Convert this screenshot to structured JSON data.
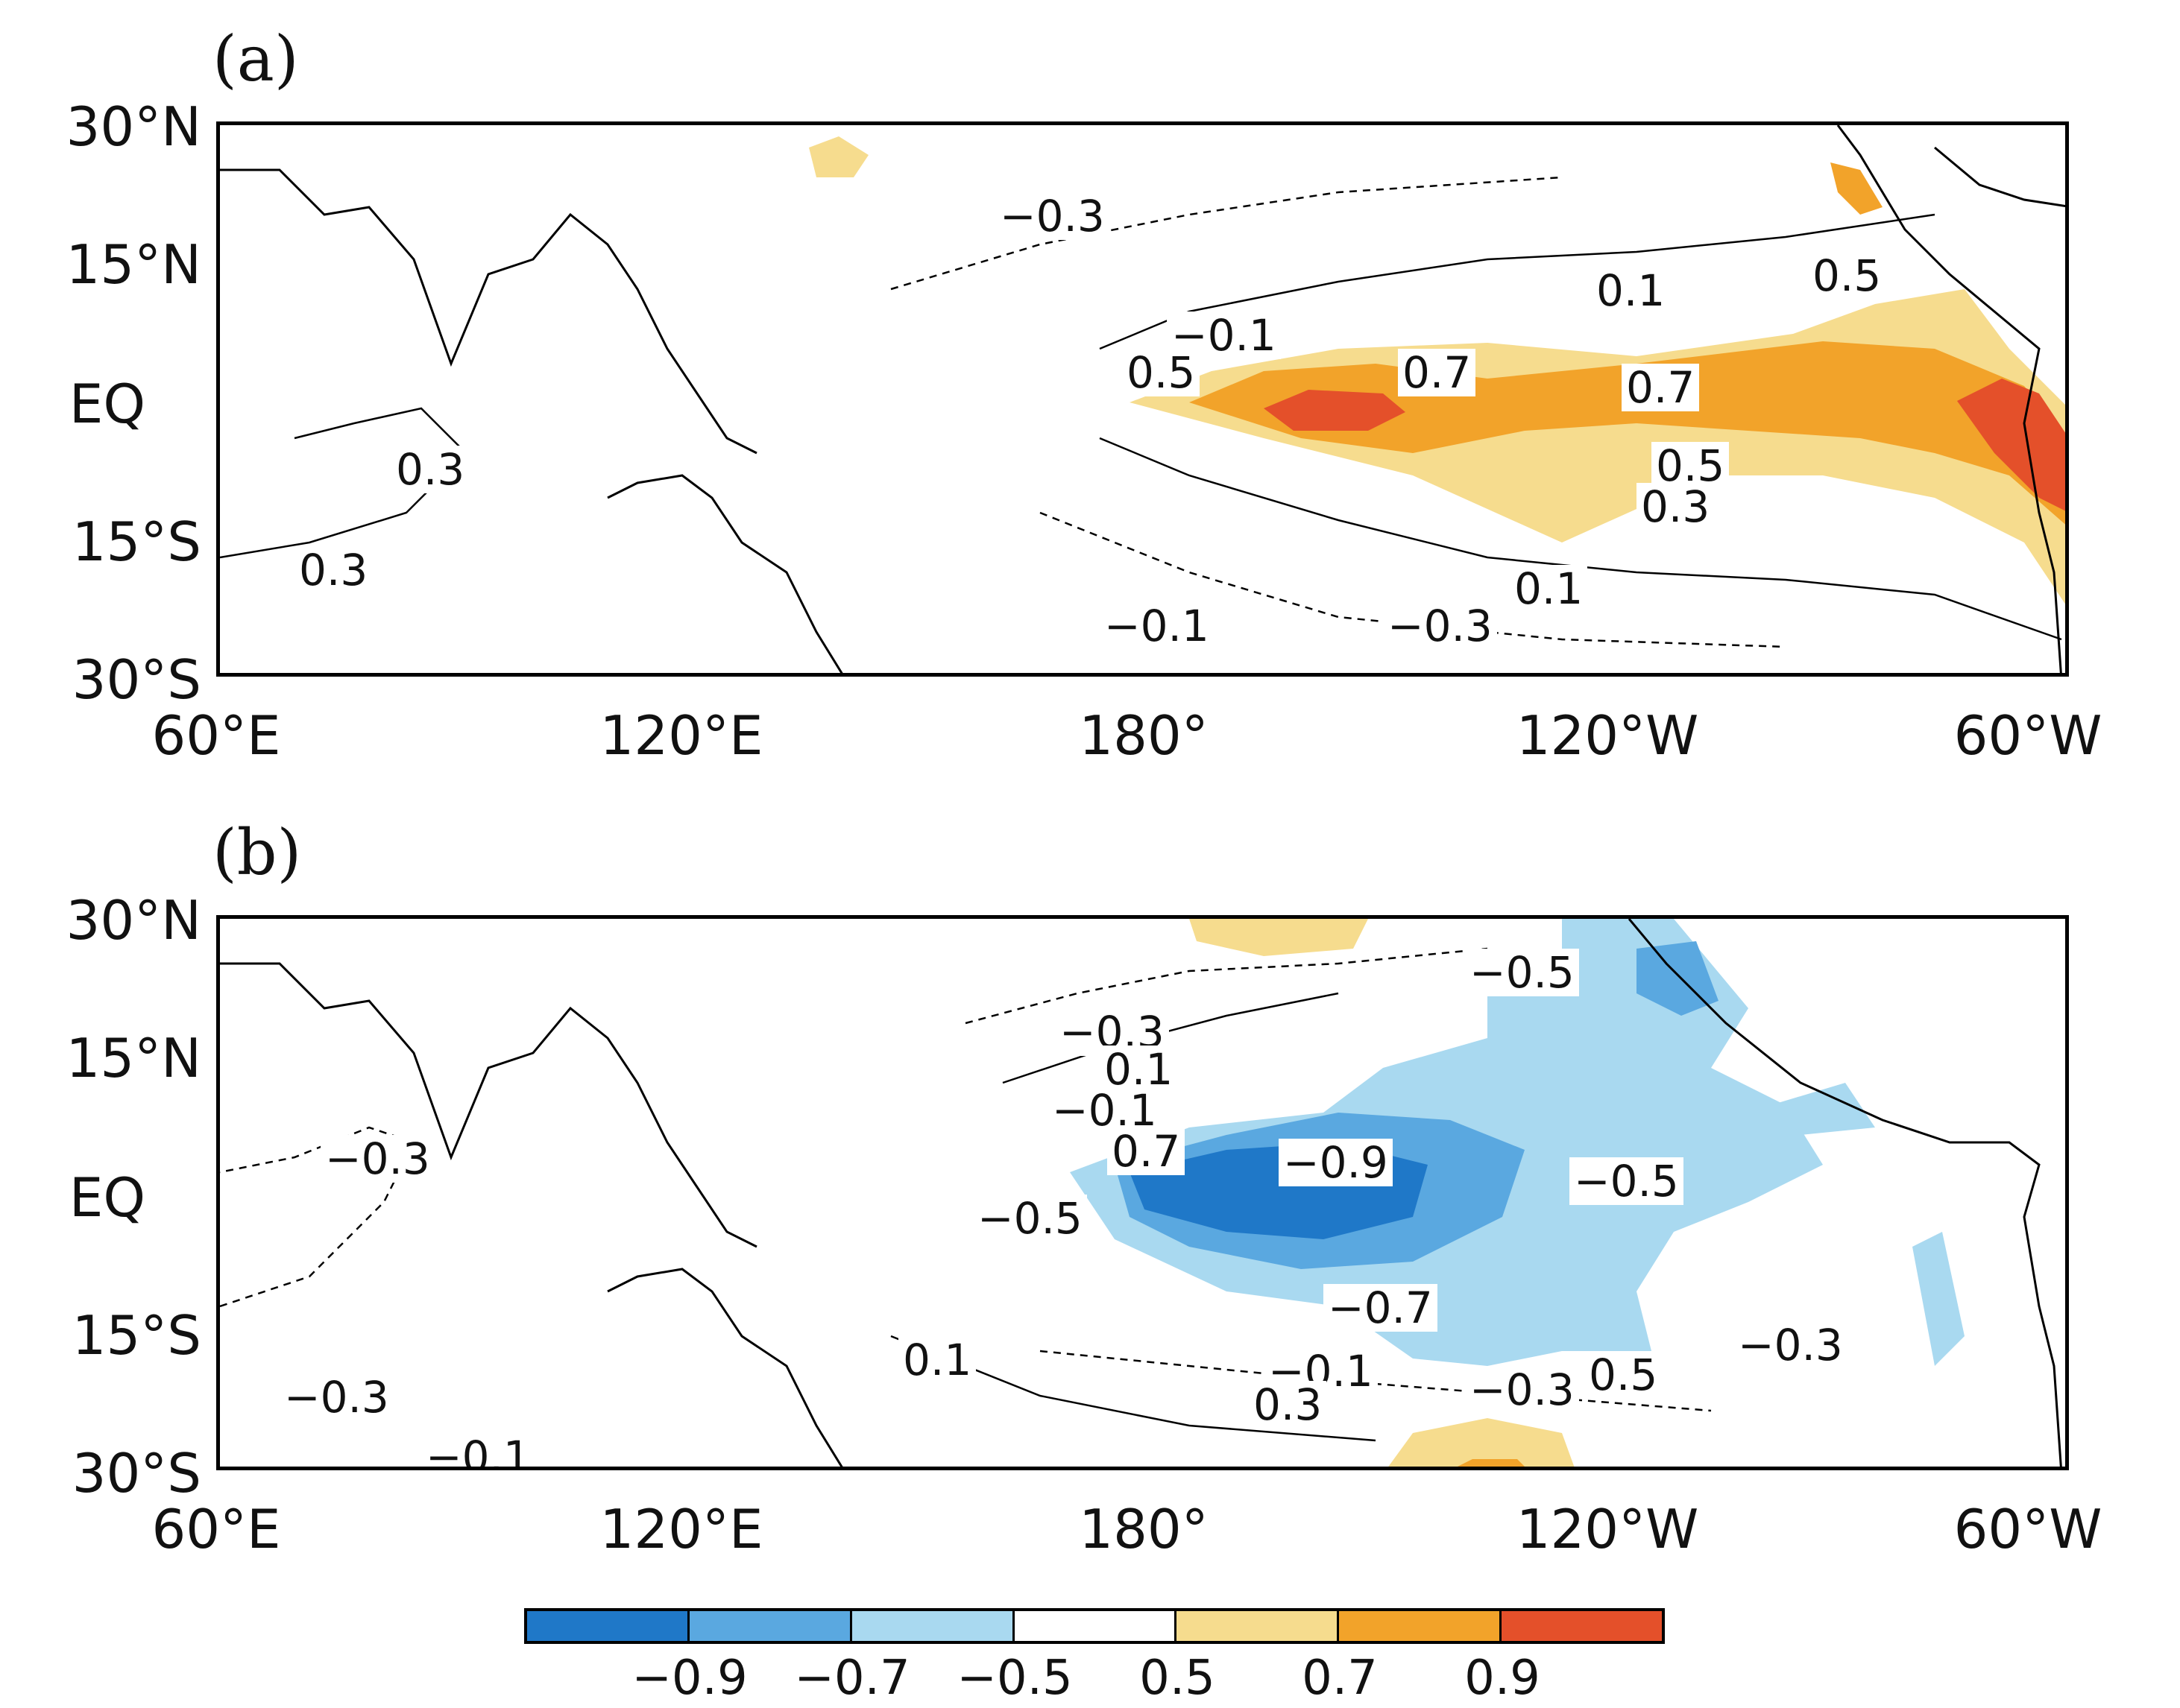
{
  "panels": [
    {
      "label": "(a)",
      "lat_ticks": [
        "30°N",
        "15°N",
        "EQ",
        "15°S",
        "30°S"
      ],
      "lon_ticks": [
        "60°E",
        "120°E",
        "180°",
        "120°W",
        "60°W"
      ],
      "contour_labels": [
        "−0.3",
        "0.1",
        "0.5",
        "−0.1",
        "0.5",
        "0.7",
        "0.7",
        "0.5",
        "0.3",
        "0.3",
        "0.3",
        "0.1",
        "−0.1",
        "−0.3"
      ]
    },
    {
      "label": "(b)",
      "lat_ticks": [
        "30°N",
        "15°N",
        "EQ",
        "15°S",
        "30°S"
      ],
      "lon_ticks": [
        "60°E",
        "120°E",
        "180°",
        "120°W",
        "60°W"
      ],
      "contour_labels": [
        "−0.5",
        "−0.3",
        "0.1",
        "−0.1",
        "−0.3",
        "0.7",
        "−0.9",
        "−0.5",
        "−0.5",
        "−0.7",
        "−0.3",
        "0.1",
        "−0.3",
        "−0.1",
        "0.5",
        "0.3",
        "−0.3",
        "−0.1"
      ]
    }
  ],
  "colorbar": {
    "colors": [
      "#1f78c8",
      "#5aa8e0",
      "#a9d9f0",
      "#ffffff",
      "#f6dc8e",
      "#f2a32a",
      "#e4502a"
    ],
    "labels": [
      "−0.9",
      "−0.7",
      "−0.5",
      "0.5",
      "0.7",
      "0.9"
    ]
  }
}
